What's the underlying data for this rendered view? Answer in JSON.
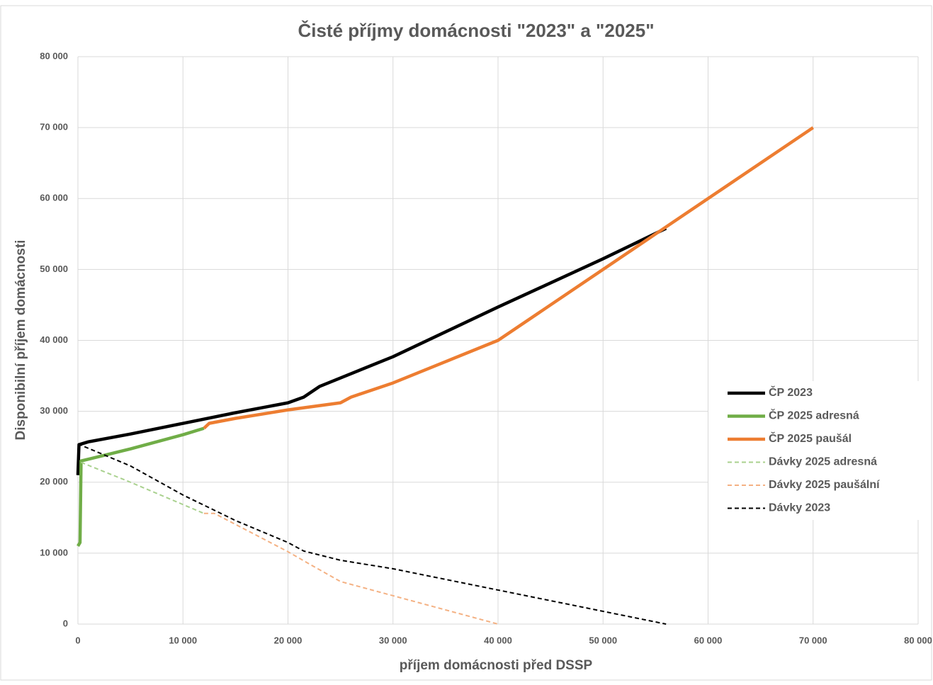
{
  "chart_data": {
    "type": "line",
    "title": "Čisté příjmy domácnosti \"2023\" a \"2025\"",
    "xlabel": "příjem domácnosti před DSSP",
    "ylabel": "Disponibilní příjem domácnosti",
    "xlim": [
      0,
      80000
    ],
    "ylim": [
      0,
      80000
    ],
    "xticks": [
      0,
      {
        "value": 10000,
        "label": "10 000"
      },
      {
        "value": 20000,
        "label": "20 000"
      },
      {
        "value": 30000,
        "label": "30 000"
      },
      {
        "value": 40000,
        "label": "40 000"
      },
      {
        "value": 50000,
        "label": "50 000"
      },
      {
        "value": 60000,
        "label": "60 000"
      },
      {
        "value": 70000,
        "label": "70 000"
      },
      {
        "value": 80000,
        "label": "80 000"
      }
    ],
    "yticks": [
      0,
      {
        "value": 10000,
        "label": "10 000"
      },
      {
        "value": 20000,
        "label": "20 000"
      },
      {
        "value": 30000,
        "label": "30 000"
      },
      {
        "value": 40000,
        "label": "40 000"
      },
      {
        "value": 50000,
        "label": "50 000"
      },
      {
        "value": 60000,
        "label": "60 000"
      },
      {
        "value": 70000,
        "label": "70 000"
      },
      {
        "value": 80000,
        "label": "80 000"
      }
    ],
    "grid": true,
    "legend": "right",
    "series": [
      {
        "name": "ČP 2023",
        "color": "#000000",
        "dashed": false,
        "x": [
          0,
          100,
          1000,
          5000,
          10000,
          15000,
          20000,
          21500,
          23000,
          25000,
          30000,
          40000,
          50000,
          56000
        ],
        "values": [
          21000,
          25300,
          25700,
          26800,
          28300,
          29800,
          31200,
          32000,
          33500,
          34700,
          37700,
          44700,
          51500,
          55800
        ]
      },
      {
        "name": "ČP 2025 adresná",
        "color": "#70ad47",
        "dashed": false,
        "x": [
          0,
          200,
          300,
          5000,
          10000,
          12000
        ],
        "values": [
          11000,
          11500,
          23000,
          24700,
          26700,
          27600
        ]
      },
      {
        "name": "ČP 2025 paušál",
        "color": "#ed7d31",
        "dashed": false,
        "x": [
          12000,
          12500,
          15000,
          20000,
          22000,
          25000,
          26000,
          30000,
          35000,
          40000,
          45000,
          50000,
          55000,
          60000,
          70000
        ],
        "values": [
          27600,
          28300,
          29000,
          30200,
          30600,
          31200,
          32000,
          34000,
          37000,
          40000,
          45000,
          50000,
          55000,
          60000,
          70000
        ]
      },
      {
        "name": "Dávky 2025 adresná",
        "color": "#a9d18e",
        "dashed": true,
        "x": [
          300,
          5000,
          12000
        ],
        "values": [
          22800,
          20000,
          15600
        ]
      },
      {
        "name": "Dávky 2025 paušální",
        "color": "#f4b183",
        "dashed": true,
        "x": [
          12000,
          13000,
          20000,
          22000,
          25000,
          30000,
          40000
        ],
        "values": [
          15600,
          15600,
          10200,
          8500,
          6000,
          4000,
          0
        ]
      },
      {
        "name": "Dávky 2023",
        "color": "#000000",
        "dashed": true,
        "x": [
          0,
          5000,
          10000,
          15000,
          20000,
          21500,
          25000,
          30000,
          40000,
          50000,
          56000
        ],
        "values": [
          25400,
          22300,
          18200,
          14600,
          11500,
          10300,
          9000,
          7800,
          4800,
          1800,
          0
        ]
      }
    ]
  }
}
